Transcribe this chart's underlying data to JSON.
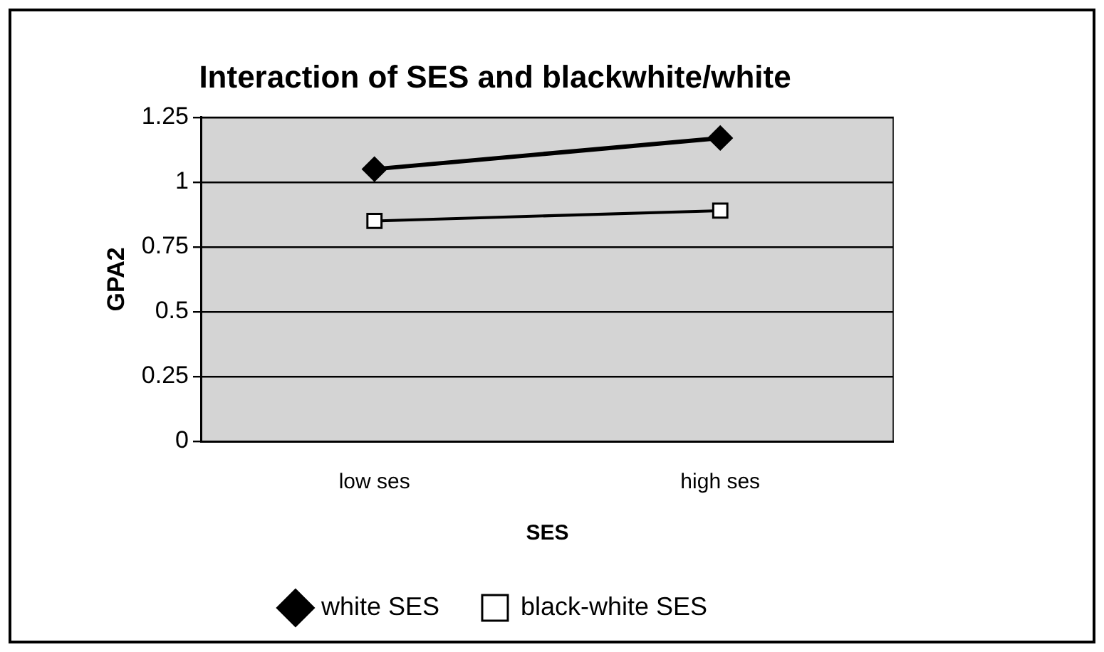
{
  "chart_data": {
    "type": "line",
    "title": "Interaction of SES and blackwhite/white",
    "xlabel": "SES",
    "ylabel": "GPA2",
    "categories": [
      "low ses",
      "high ses"
    ],
    "series": [
      {
        "name": "white SES",
        "color": "#000000",
        "values": [
          1.05,
          1.17
        ],
        "marker": "diamond"
      },
      {
        "name": "black-white SES",
        "color": "#000000",
        "values": [
          0.85,
          0.89
        ],
        "marker": "square"
      }
    ],
    "ylim": [
      0,
      1.25
    ],
    "yticks": [
      0,
      0.25,
      0.5,
      0.75,
      1,
      1.25
    ],
    "grid": "y",
    "legend": "bottom",
    "line_style": "solid"
  }
}
